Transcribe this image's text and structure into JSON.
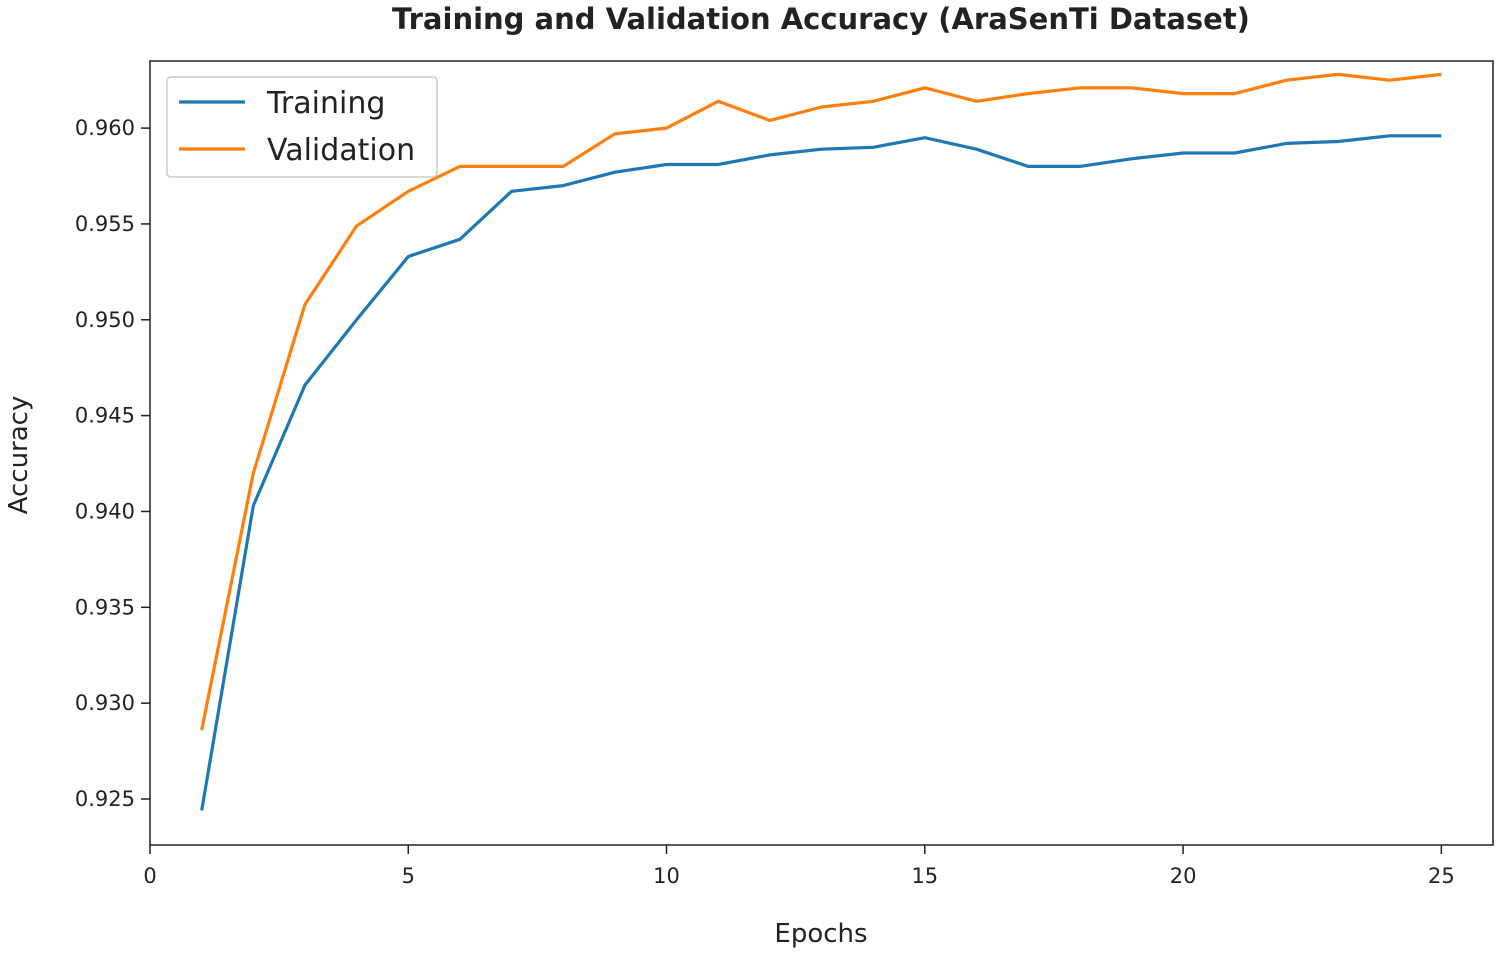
{
  "chart_data": {
    "type": "line",
    "title": "Training and Validation Accuracy (AraSenTi Dataset)",
    "xlabel": "Epochs",
    "ylabel": "Accuracy",
    "xlim": [
      0,
      26
    ],
    "ylim": [
      0.9226,
      0.9635
    ],
    "xticks": [
      0,
      5,
      10,
      15,
      20,
      25
    ],
    "xtick_labels": [
      "0",
      "5",
      "10",
      "15",
      "20",
      "25"
    ],
    "yticks": [
      0.925,
      0.93,
      0.935,
      0.94,
      0.945,
      0.95,
      0.955,
      0.96
    ],
    "ytick_labels": [
      "0.925",
      "0.930",
      "0.935",
      "0.940",
      "0.945",
      "0.950",
      "0.955",
      "0.960"
    ],
    "grid": false,
    "legend_position": "top-left",
    "x": [
      1,
      2,
      3,
      4,
      5,
      6,
      7,
      8,
      9,
      10,
      11,
      12,
      13,
      14,
      15,
      16,
      17,
      18,
      19,
      20,
      21,
      22,
      23,
      24,
      25
    ],
    "series": [
      {
        "name": "Training",
        "color": "#1f77b4",
        "values": [
          0.9244,
          0.9403,
          0.9466,
          0.95,
          0.9533,
          0.9542,
          0.9567,
          0.957,
          0.9577,
          0.9581,
          0.9581,
          0.9586,
          0.9589,
          0.959,
          0.9595,
          0.9589,
          0.958,
          0.958,
          0.9584,
          0.9587,
          0.9587,
          0.9592,
          0.9593,
          0.9596,
          0.9596
        ]
      },
      {
        "name": "Validation",
        "color": "#ff7f0e",
        "values": [
          0.9286,
          0.942,
          0.9508,
          0.9549,
          0.9567,
          0.958,
          0.958,
          0.958,
          0.9597,
          0.96,
          0.9614,
          0.9604,
          0.9611,
          0.9614,
          0.9621,
          0.9614,
          0.9618,
          0.9621,
          0.9621,
          0.9618,
          0.9618,
          0.9625,
          0.9628,
          0.9625,
          0.9628
        ]
      }
    ]
  }
}
